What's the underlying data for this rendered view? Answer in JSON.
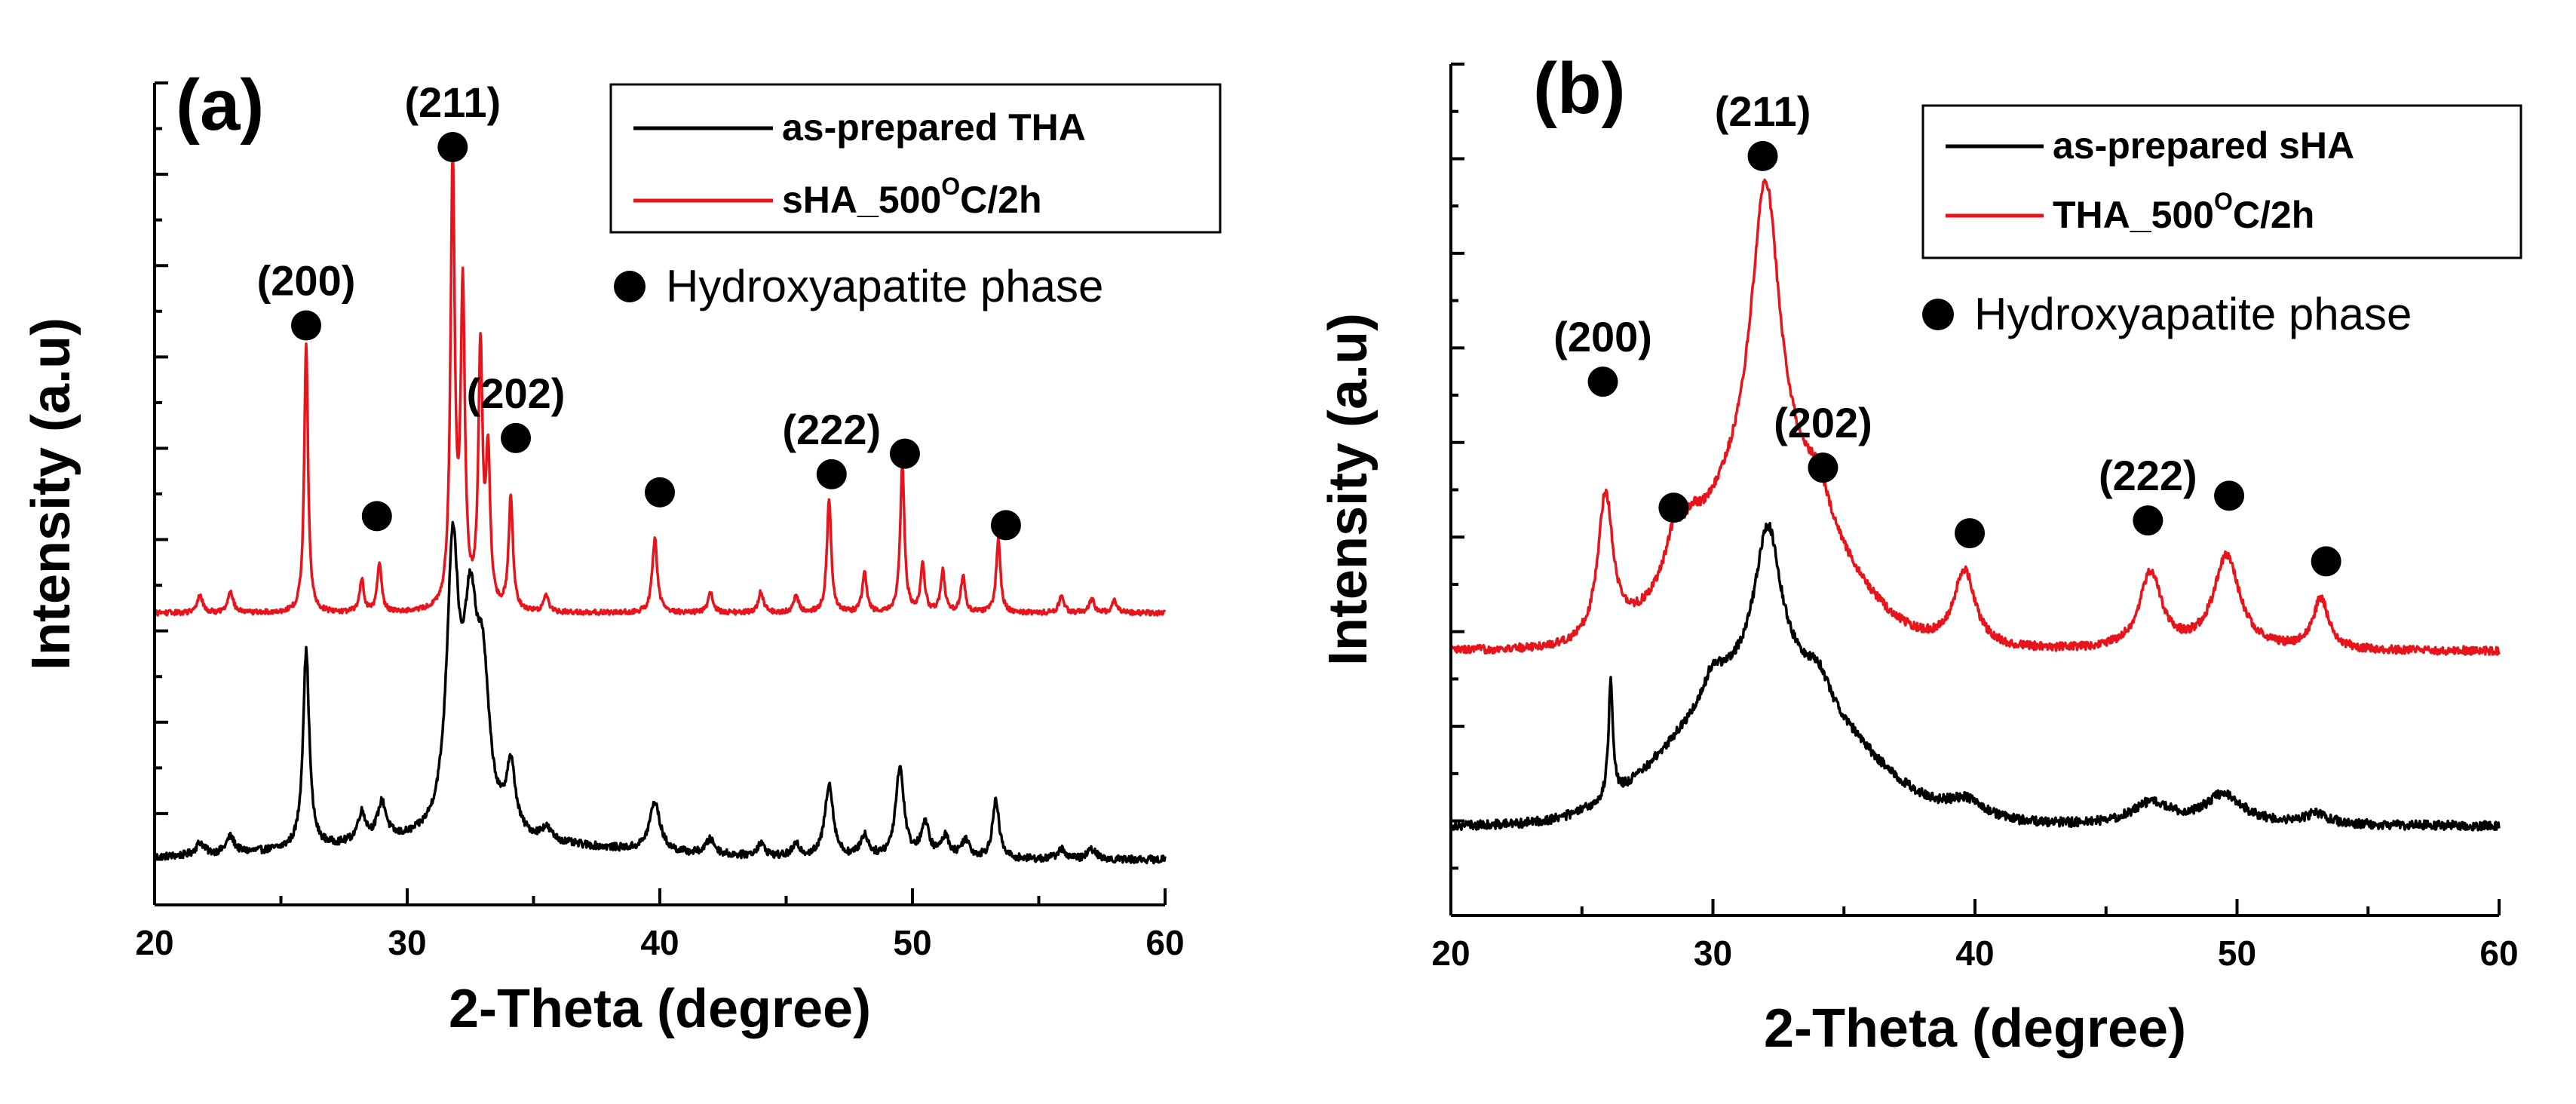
{
  "chart_data": [
    {
      "type": "line",
      "panel": "(a)",
      "xlabel": "2-Theta (degree)",
      "ylabel": "Intensity (a.u)",
      "xlim": [
        20,
        60
      ],
      "ylim": [
        0,
        100
      ],
      "xticks": [
        20,
        30,
        40,
        50,
        60
      ],
      "grid": false,
      "legend_position": "top-right",
      "legend": [
        {
          "label": "as-prepared THA",
          "color": "#000000",
          "sup": "",
          "suffix": ""
        },
        {
          "label": "sHA_500",
          "color": "#e8141b",
          "sup": "O",
          "suffix": "C/2h"
        }
      ],
      "phase_label": "Hydroxyapatite phase",
      "series": [
        {
          "name": "as-prepared THA",
          "color": "#000000",
          "baseline": 5.5,
          "noise": 0.45,
          "hump": {
            "center": 32,
            "width": 6,
            "height": 2
          },
          "peaks": [
            [
              21.8,
              1.5,
              0.2
            ],
            [
              23,
              2,
              0.2
            ],
            [
              26,
              24,
              0.15
            ],
            [
              28.2,
              3.5,
              0.2
            ],
            [
              29,
              4.5,
              0.22
            ],
            [
              31.8,
              33,
              0.28
            ],
            [
              32.5,
              24,
              0.35
            ],
            [
              33,
              16,
              0.3
            ],
            [
              34.1,
              8,
              0.22
            ],
            [
              35.5,
              1.5,
              0.25
            ],
            [
              39.8,
              6,
              0.25
            ],
            [
              42,
              1.8,
              0.22
            ],
            [
              44,
              1.5,
              0.2
            ],
            [
              45.4,
              1.4,
              0.2
            ],
            [
              46.7,
              9,
              0.2
            ],
            [
              48.1,
              2.6,
              0.2
            ],
            [
              49.5,
              11,
              0.2
            ],
            [
              50.5,
              4,
              0.2
            ],
            [
              51.3,
              2.5,
              0.2
            ],
            [
              52.1,
              2.2,
              0.2
            ],
            [
              53.3,
              7,
              0.16
            ],
            [
              55.9,
              1.2,
              0.2
            ],
            [
              57.1,
              1.2,
              0.2
            ]
          ]
        },
        {
          "name": "sHA_500C/2h",
          "color": "#e8141b",
          "baseline": 35.5,
          "noise": 0.3,
          "hump": {
            "center": 32,
            "width": 6,
            "height": 0
          },
          "peaks": [
            [
              21.8,
              2.2,
              0.12
            ],
            [
              23,
              2.8,
              0.12
            ],
            [
              26,
              33,
              0.09
            ],
            [
              28.2,
              4,
              0.1
            ],
            [
              28.9,
              6,
              0.1
            ],
            [
              31.8,
              54,
              0.1
            ],
            [
              32.2,
              38,
              0.1
            ],
            [
              32.9,
              31,
              0.1
            ],
            [
              33.2,
              18,
              0.1
            ],
            [
              34.1,
              14,
              0.1
            ],
            [
              35.5,
              2,
              0.12
            ],
            [
              39.8,
              9,
              0.12
            ],
            [
              42,
              2.5,
              0.12
            ],
            [
              44,
              2.5,
              0.12
            ],
            [
              45.4,
              2,
              0.12
            ],
            [
              46.7,
              14,
              0.1
            ],
            [
              48.1,
              5,
              0.1
            ],
            [
              49.6,
              18,
              0.1
            ],
            [
              50.4,
              6,
              0.1
            ],
            [
              51.2,
              5,
              0.1
            ],
            [
              52,
              4.5,
              0.1
            ],
            [
              53.4,
              9,
              0.1
            ],
            [
              55.9,
              2,
              0.12
            ],
            [
              57.1,
              1.7,
              0.12
            ],
            [
              58,
              1.5,
              0.12
            ]
          ]
        }
      ],
      "markers": [
        {
          "x": 26,
          "y": 70.5,
          "label": "(200)"
        },
        {
          "x": 28.8,
          "y": 47.3,
          "label": ""
        },
        {
          "x": 31.8,
          "y": 92.2,
          "label": "(211)"
        },
        {
          "x": 34.3,
          "y": 56.8,
          "label": "(202)"
        },
        {
          "x": 40,
          "y": 50.2,
          "label": ""
        },
        {
          "x": 46.8,
          "y": 52.4,
          "label": "(222)"
        },
        {
          "x": 49.7,
          "y": 54.9,
          "label": ""
        },
        {
          "x": 53.7,
          "y": 46.2,
          "label": ""
        }
      ]
    },
    {
      "type": "line",
      "panel": "(b)",
      "xlabel": "2-Theta (degree)",
      "ylabel": "Intensity (a.u)",
      "xlim": [
        20,
        60
      ],
      "ylim": [
        0,
        100
      ],
      "xticks": [
        20,
        30,
        40,
        50,
        60
      ],
      "grid": false,
      "legend_position": "top-right",
      "legend": [
        {
          "label": "as-prepared sHA",
          "color": "#000000",
          "sup": "",
          "suffix": ""
        },
        {
          "label": "THA_500",
          "color": "#e8141b",
          "sup": "O",
          "suffix": "C/2h"
        }
      ],
      "phase_label": "Hydroxyapatite phase",
      "series": [
        {
          "name": "as-prepared sHA",
          "color": "#000000",
          "baseline": 10.5,
          "noise": 0.55,
          "hump": {
            "center": 32,
            "width": 3.2,
            "height": 18
          },
          "peaks": [
            [
              26.1,
              14,
              0.1
            ],
            [
              30,
              3,
              0.4
            ],
            [
              32.1,
              17,
              0.6
            ],
            [
              34,
              3,
              0.5
            ],
            [
              39.7,
              2.2,
              0.9
            ],
            [
              46.7,
              2.5,
              0.9
            ],
            [
              49.5,
              3.5,
              0.9
            ],
            [
              53,
              1.2,
              0.6
            ]
          ]
        },
        {
          "name": "THA_500C/2h",
          "color": "#e8141b",
          "baseline": 31,
          "noise": 0.5,
          "hump": {
            "center": 32,
            "width": 2.6,
            "height": 20
          },
          "peaks": [
            [
              25.9,
              17,
              0.35
            ],
            [
              28.5,
              5,
              0.4
            ],
            [
              29.2,
              3,
              0.4
            ],
            [
              32,
              35,
              0.65
            ],
            [
              34,
              4,
              0.5
            ],
            [
              39.6,
              9,
              0.5
            ],
            [
              46.7,
              9,
              0.5
            ],
            [
              49.6,
              11,
              0.6
            ],
            [
              53.2,
              6,
              0.35
            ]
          ]
        }
      ],
      "markers": [
        {
          "x": 25.8,
          "y": 62.7,
          "label": "(200)"
        },
        {
          "x": 28.5,
          "y": 47.9,
          "label": ""
        },
        {
          "x": 31.9,
          "y": 89.2,
          "label": "(211)"
        },
        {
          "x": 34.2,
          "y": 52.6,
          "label": "(202)"
        },
        {
          "x": 39.8,
          "y": 44.9,
          "label": ""
        },
        {
          "x": 46.6,
          "y": 46.4,
          "label": "(222)"
        },
        {
          "x": 49.7,
          "y": 49.3,
          "label": ""
        },
        {
          "x": 53.4,
          "y": 41.6,
          "label": ""
        }
      ]
    }
  ]
}
